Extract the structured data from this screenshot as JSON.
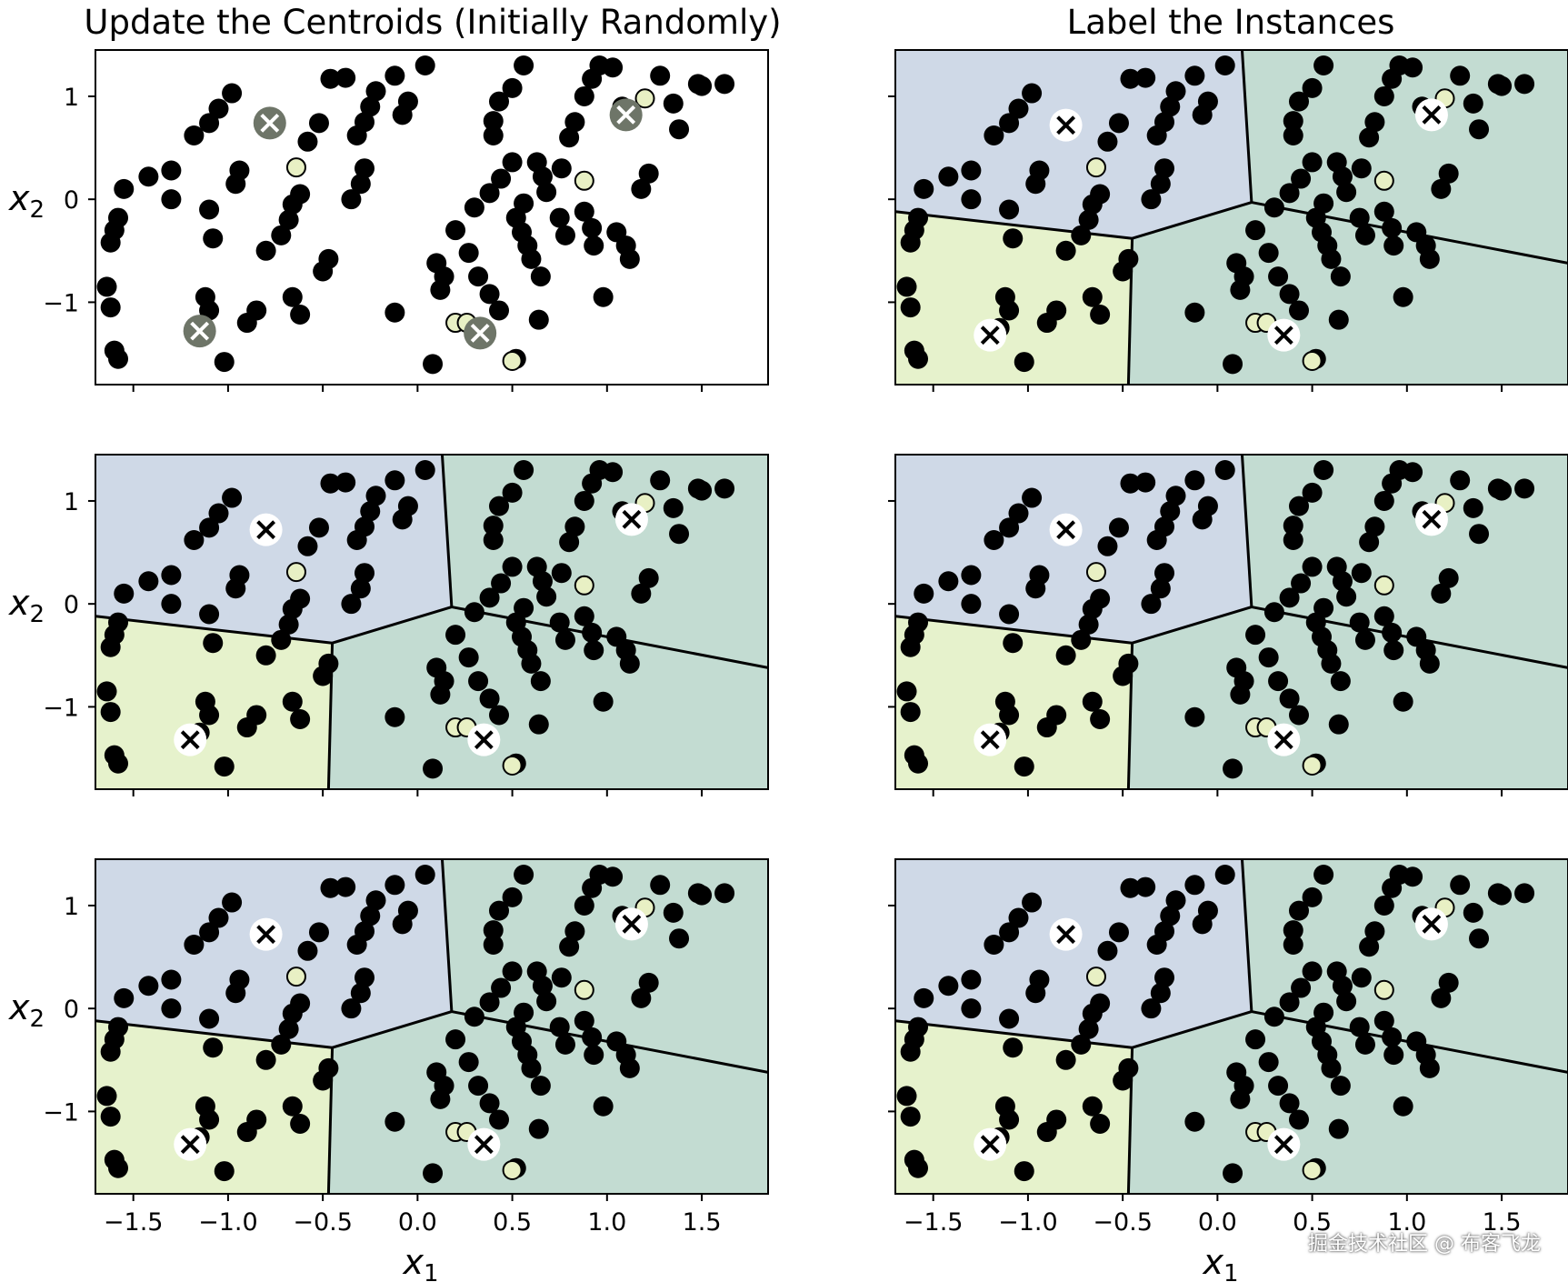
{
  "colors": {
    "region_a": "#cfd9e7",
    "region_b": "#e6f2cc",
    "region_c": "#c3dcd2",
    "point": "#000000",
    "highlight_point": "#e8f0c4",
    "initial_centroid_fill": "#6e7568",
    "centroid_fill": "#ffffff",
    "centroid_mark": "#000000"
  },
  "chart_data": {
    "type": "scatter",
    "column_titles": [
      "Update the Centroids (Initially Randomly)",
      "Label the Instances"
    ],
    "xlabel_main": "x",
    "xlabel_sub": "1",
    "ylabel_main": "x",
    "ylabel_sub": "2",
    "xlim": [
      -1.7,
      1.85
    ],
    "ylim": [
      -1.8,
      1.45
    ],
    "xticks": [
      -1.5,
      -1.0,
      -0.5,
      0.0,
      0.5,
      1.0,
      1.5
    ],
    "xtick_labels": [
      "−1.5",
      "−1.0",
      "−0.5",
      "0.0",
      "0.5",
      "1.0",
      "1.5"
    ],
    "yticks": [
      1,
      0,
      -1
    ],
    "ytick_labels": [
      "1",
      "0",
      "−1"
    ],
    "initial_centroids": [
      [
        -0.78,
        0.74
      ],
      [
        -1.15,
        -1.28
      ],
      [
        0.33,
        -1.3
      ],
      [
        1.1,
        0.82
      ]
    ],
    "centroids": [
      [
        -0.8,
        0.72
      ],
      [
        -1.2,
        -1.32
      ],
      [
        0.35,
        -1.32
      ],
      [
        1.13,
        0.82
      ]
    ],
    "voronoi_edges": [
      [
        [
          0.18,
          -0.03
        ],
        [
          0.13,
          1.45
        ]
      ],
      [
        [
          0.18,
          -0.03
        ],
        [
          -0.45,
          -0.38
        ]
      ],
      [
        [
          -0.45,
          -0.38
        ],
        [
          -1.7,
          -0.12
        ]
      ],
      [
        [
          -0.45,
          -0.38
        ],
        [
          -0.47,
          -1.8
        ]
      ],
      [
        [
          0.18,
          -0.03
        ],
        [
          1.85,
          -0.62
        ]
      ]
    ],
    "highlight_points": [
      [
        -0.64,
        0.31
      ],
      [
        0.88,
        0.18
      ],
      [
        0.2,
        -1.2
      ],
      [
        0.26,
        -1.2
      ],
      [
        0.5,
        -1.57
      ],
      [
        1.2,
        0.98
      ]
    ],
    "points": [
      [
        -1.55,
        0.1
      ],
      [
        -1.42,
        0.22
      ],
      [
        -1.3,
        0.28
      ],
      [
        -1.58,
        -0.18
      ],
      [
        -1.6,
        -0.3
      ],
      [
        -1.62,
        -0.42
      ],
      [
        -1.64,
        -0.85
      ],
      [
        -1.62,
        -1.05
      ],
      [
        -1.6,
        -1.47
      ],
      [
        -1.58,
        -1.55
      ],
      [
        -1.18,
        0.62
      ],
      [
        -1.1,
        0.74
      ],
      [
        -1.05,
        0.88
      ],
      [
        -0.98,
        1.03
      ],
      [
        -1.3,
        0.0
      ],
      [
        -1.1,
        -0.1
      ],
      [
        -1.08,
        -0.38
      ],
      [
        -1.12,
        -0.95
      ],
      [
        -1.1,
        -1.08
      ],
      [
        -1.15,
        -1.25
      ],
      [
        -1.02,
        -1.58
      ],
      [
        -0.96,
        0.15
      ],
      [
        -0.94,
        0.28
      ],
      [
        -0.58,
        0.56
      ],
      [
        -0.52,
        0.74
      ],
      [
        -0.62,
        0.05
      ],
      [
        -0.66,
        -0.05
      ],
      [
        -0.68,
        -0.2
      ],
      [
        -0.72,
        -0.35
      ],
      [
        -0.8,
        -0.5
      ],
      [
        -0.85,
        -1.08
      ],
      [
        -0.9,
        -1.2
      ],
      [
        -0.66,
        -0.95
      ],
      [
        -0.62,
        -1.12
      ],
      [
        -0.5,
        -0.7
      ],
      [
        -0.47,
        -0.58
      ],
      [
        -0.46,
        1.17
      ],
      [
        -0.38,
        1.18
      ],
      [
        -0.28,
        0.75
      ],
      [
        -0.25,
        0.9
      ],
      [
        -0.22,
        1.05
      ],
      [
        -0.32,
        0.62
      ],
      [
        -0.35,
        0.0
      ],
      [
        -0.3,
        0.15
      ],
      [
        -0.28,
        0.3
      ],
      [
        -0.12,
        1.2
      ],
      [
        -0.08,
        0.82
      ],
      [
        -0.05,
        0.95
      ],
      [
        -0.12,
        -1.1
      ],
      [
        0.04,
        1.3
      ],
      [
        0.1,
        -0.62
      ],
      [
        0.14,
        -0.75
      ],
      [
        0.12,
        -0.88
      ],
      [
        0.08,
        -1.6
      ],
      [
        0.2,
        -0.3
      ],
      [
        0.27,
        -0.52
      ],
      [
        0.32,
        -0.75
      ],
      [
        0.38,
        -0.92
      ],
      [
        0.43,
        -1.08
      ],
      [
        0.52,
        -1.55
      ],
      [
        0.3,
        -0.08
      ],
      [
        0.38,
        0.06
      ],
      [
        0.44,
        0.2
      ],
      [
        0.5,
        0.36
      ],
      [
        0.4,
        0.62
      ],
      [
        0.4,
        0.76
      ],
      [
        0.43,
        0.95
      ],
      [
        0.5,
        1.08
      ],
      [
        0.56,
        1.3
      ],
      [
        0.55,
        -0.32
      ],
      [
        0.58,
        -0.45
      ],
      [
        0.52,
        -0.18
      ],
      [
        0.56,
        -0.04
      ],
      [
        0.6,
        -0.58
      ],
      [
        0.65,
        -0.75
      ],
      [
        0.64,
        -1.17
      ],
      [
        0.63,
        0.36
      ],
      [
        0.66,
        0.22
      ],
      [
        0.68,
        0.07
      ],
      [
        0.76,
        0.3
      ],
      [
        0.8,
        0.6
      ],
      [
        0.83,
        0.75
      ],
      [
        0.88,
        1.0
      ],
      [
        0.92,
        1.17
      ],
      [
        0.96,
        1.3
      ],
      [
        0.75,
        -0.18
      ],
      [
        0.78,
        -0.35
      ],
      [
        0.88,
        -0.12
      ],
      [
        0.92,
        -0.28
      ],
      [
        0.93,
        -0.45
      ],
      [
        0.98,
        -0.95
      ],
      [
        1.03,
        1.28
      ],
      [
        1.08,
        0.9
      ],
      [
        1.05,
        -0.32
      ],
      [
        1.1,
        -0.45
      ],
      [
        1.12,
        -0.58
      ],
      [
        1.18,
        0.1
      ],
      [
        1.22,
        0.25
      ],
      [
        1.28,
        1.2
      ],
      [
        1.35,
        0.93
      ],
      [
        1.38,
        0.68
      ],
      [
        1.48,
        1.12
      ],
      [
        1.5,
        1.1
      ],
      [
        1.62,
        1.12
      ]
    ]
  },
  "watermark": "掘金技术社区 @ 布客飞龙"
}
